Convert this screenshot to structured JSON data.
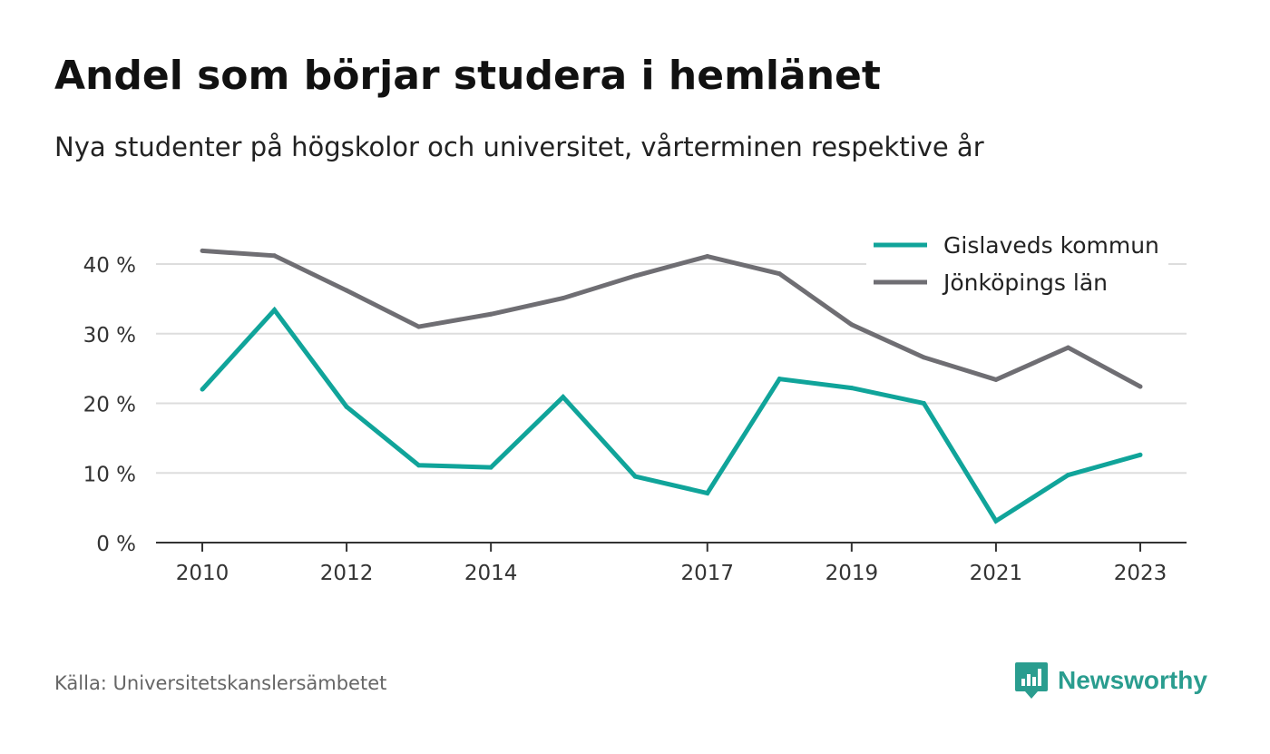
{
  "title": "Andel som börjar studera i hemlänet",
  "subtitle": "Nya studenter på högskolor och universitet, vårterminen respektive år",
  "source": "Källa: Universitetskanslersämbetet",
  "brand": "Newsworthy",
  "colors": {
    "gislaved": "#10a49a",
    "jonkoping": "#6f6e73",
    "grid": "#dddddd",
    "axis": "#333333",
    "brand": "#2a9d8f"
  },
  "chart_data": {
    "type": "line",
    "x": [
      2010,
      2011,
      2012,
      2013,
      2014,
      2015,
      2016,
      2017,
      2018,
      2019,
      2020,
      2021,
      2022,
      2023
    ],
    "x_tick_labels": [
      "2010",
      "2012",
      "2014",
      "2017",
      "2019",
      "2021",
      "2023"
    ],
    "y_tick_labels": [
      "0 %",
      "10 %",
      "20 %",
      "30 %",
      "40 %"
    ],
    "ylim": [
      0,
      40
    ],
    "grid": true,
    "legend_position": "top-right",
    "series": [
      {
        "name": "Gislaveds kommun",
        "color": "#10a49a",
        "values": [
          22.0,
          33.4,
          19.5,
          11.1,
          10.8,
          20.9,
          9.5,
          7.1,
          23.5,
          22.2,
          20.0,
          3.1,
          9.7,
          12.6
        ]
      },
      {
        "name": "Jönköpings län",
        "color": "#6f6e73",
        "values": [
          41.9,
          41.2,
          36.2,
          31.0,
          32.8,
          35.1,
          38.3,
          41.1,
          38.6,
          31.3,
          26.6,
          23.4,
          28.0,
          22.4
        ]
      }
    ]
  }
}
